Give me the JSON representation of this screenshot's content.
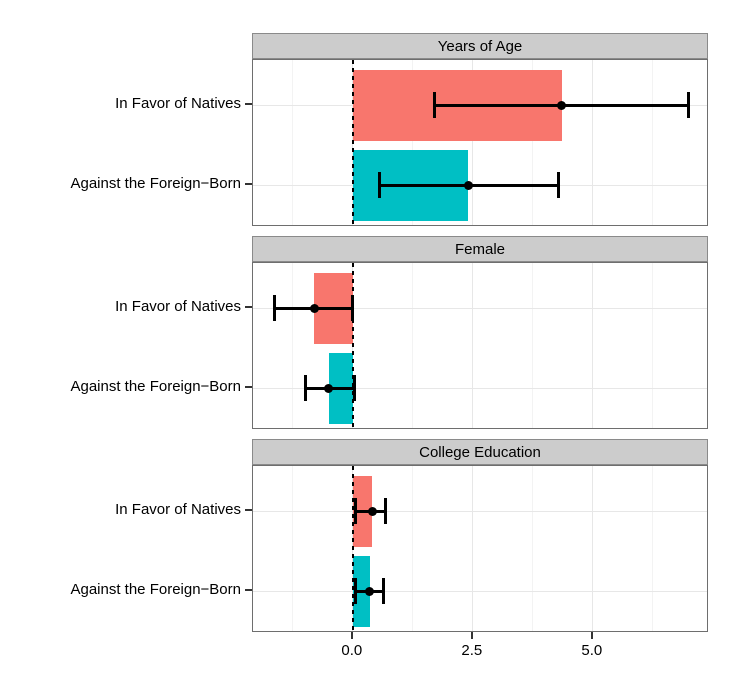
{
  "chart_data": {
    "type": "bar",
    "subtype": "horizontal-bars-with-error-bars",
    "title": "",
    "xlabel": "",
    "ylabel": "",
    "facets": [
      {
        "title": "Years of Age",
        "rows": [
          {
            "label": "In Favor of Natives",
            "series": "in_favor_of_natives",
            "value": 4.35,
            "ci_low": 1.7,
            "ci_high": 7.0
          },
          {
            "label": "Against the Foreign−Born",
            "series": "against_foreign_born",
            "value": 2.4,
            "ci_low": 0.55,
            "ci_high": 4.3
          }
        ]
      },
      {
        "title": "Female",
        "rows": [
          {
            "label": "In Favor of Natives",
            "series": "in_favor_of_natives",
            "value": -0.8,
            "ci_low": -1.65,
            "ci_high": 0.0
          },
          {
            "label": "Against the Foreign−Born",
            "series": "against_foreign_born",
            "value": -0.5,
            "ci_low": -1.0,
            "ci_high": 0.05
          }
        ]
      },
      {
        "title": "College Education",
        "rows": [
          {
            "label": "In Favor of Natives",
            "series": "in_favor_of_natives",
            "value": 0.4,
            "ci_low": 0.05,
            "ci_high": 0.7
          },
          {
            "label": "Against the Foreign−Born",
            "series": "against_foreign_born",
            "value": 0.35,
            "ci_low": 0.05,
            "ci_high": 0.65
          }
        ]
      }
    ],
    "x_axis": {
      "range": [
        -2.08,
        7.42
      ],
      "ticks": [
        0,
        2.5,
        5
      ],
      "tick_labels": [
        "0.0",
        "2.5",
        "5.0"
      ],
      "minor_ticks": [
        -1.25,
        1.25,
        3.75,
        6.25
      ]
    },
    "reference_line": {
      "x": 0,
      "linetype": "dotted",
      "color": "#000000"
    },
    "legend": {
      "visible": false
    },
    "grid": true,
    "colors": {
      "in_favor_of_natives": "#F8766D",
      "against_foreign_born": "#00BFC4",
      "strip_background": "#CCCCCC",
      "panel_border": "#6E6E6E",
      "grid_major": "#E7E7E7",
      "grid_minor": "#F3F3F3",
      "errorbar": "#000000"
    }
  }
}
